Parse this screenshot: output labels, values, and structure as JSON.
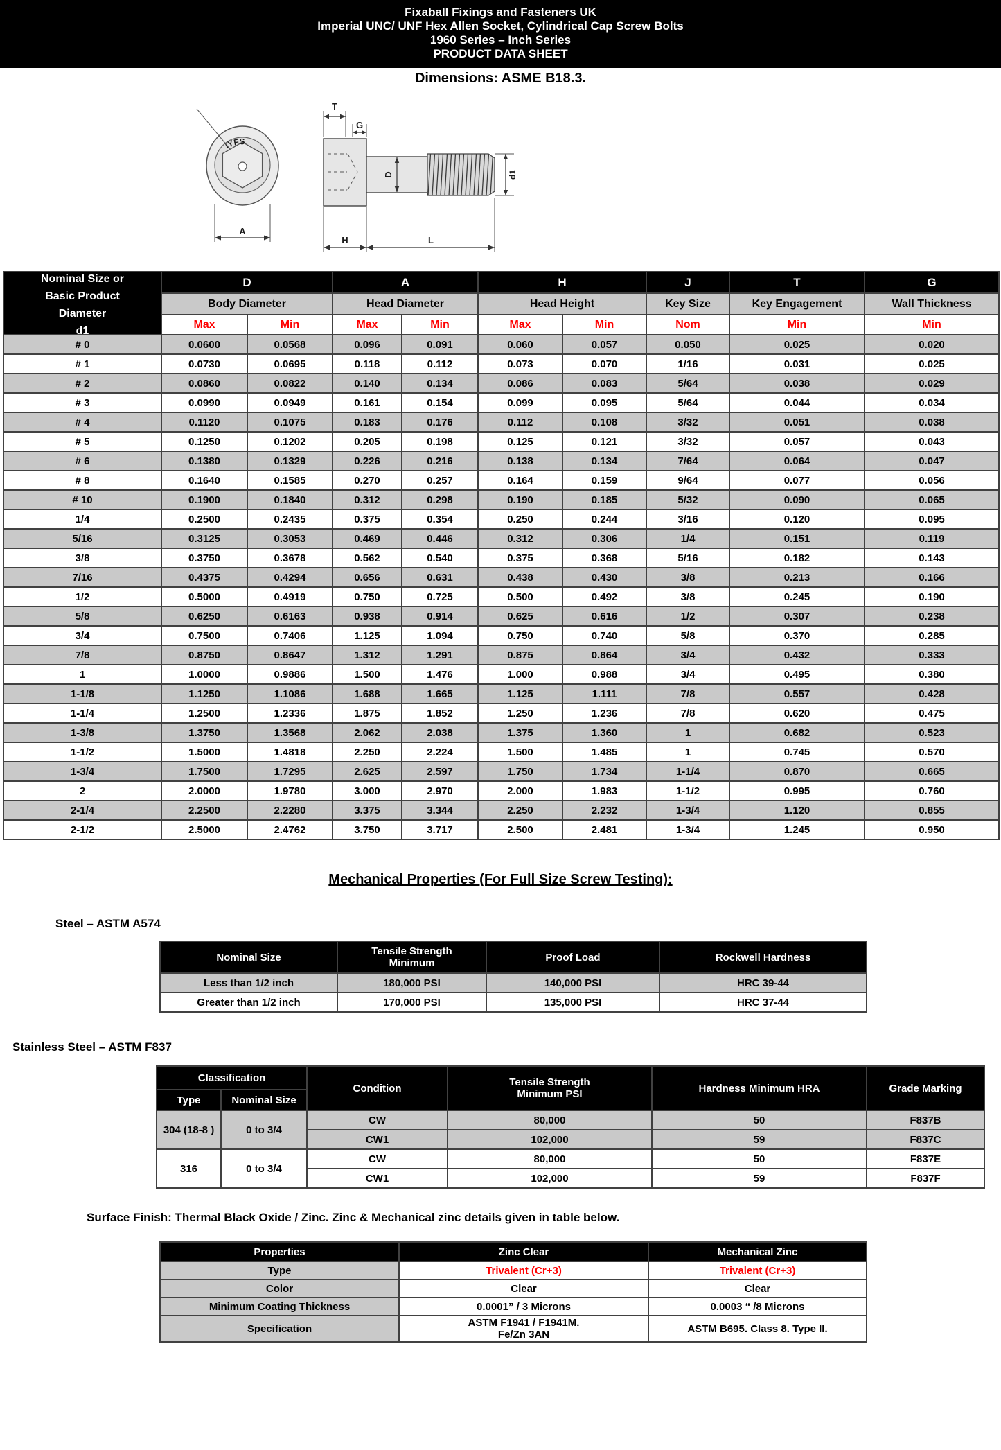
{
  "header": {
    "line1": "Fixaball Fixings and Fasteners UK",
    "line2": "Imperial UNC/ UNF Hex Allen Socket, Cylindrical Cap Screw Bolts",
    "line3": "1960 Series – Inch Series",
    "line4": "PRODUCT DATA SHEET",
    "dimensions_note": "Dimensions: ASME B18.3."
  },
  "diagram": {
    "socket_marking": "IYFS",
    "labels": {
      "t": "T",
      "g": "G",
      "d": "D",
      "d1": "d1",
      "a": "A",
      "h": "H",
      "l": "L"
    }
  },
  "dimension_table": {
    "first_col_header": "Nominal Size or\nBasic Product\nDiameter\nd1",
    "col_groups": [
      {
        "letter": "D",
        "name": "Body Diameter"
      },
      {
        "letter": "A",
        "name": "Head Diameter"
      },
      {
        "letter": "H",
        "name": "Head Height"
      },
      {
        "letter": "J",
        "name": "Key Size"
      },
      {
        "letter": "T",
        "name": "Key Engagement"
      },
      {
        "letter": "G",
        "name": "Wall Thickness"
      }
    ],
    "sub_labels": [
      "Max",
      "Min",
      "Max",
      "Min",
      "Max",
      "Min",
      "Nom",
      "Min",
      "Min"
    ],
    "rows": [
      [
        "# 0",
        "0.0600",
        "0.0568",
        "0.096",
        "0.091",
        "0.060",
        "0.057",
        "0.050",
        "0.025",
        "0.020"
      ],
      [
        "# 1",
        "0.0730",
        "0.0695",
        "0.118",
        "0.112",
        "0.073",
        "0.070",
        "1/16",
        "0.031",
        "0.025"
      ],
      [
        "# 2",
        "0.0860",
        "0.0822",
        "0.140",
        "0.134",
        "0.086",
        "0.083",
        "5/64",
        "0.038",
        "0.029"
      ],
      [
        "# 3",
        "0.0990",
        "0.0949",
        "0.161",
        "0.154",
        "0.099",
        "0.095",
        "5/64",
        "0.044",
        "0.034"
      ],
      [
        "# 4",
        "0.1120",
        "0.1075",
        "0.183",
        "0.176",
        "0.112",
        "0.108",
        "3/32",
        "0.051",
        "0.038"
      ],
      [
        "# 5",
        "0.1250",
        "0.1202",
        "0.205",
        "0.198",
        "0.125",
        "0.121",
        "3/32",
        "0.057",
        "0.043"
      ],
      [
        "# 6",
        "0.1380",
        "0.1329",
        "0.226",
        "0.216",
        "0.138",
        "0.134",
        "7/64",
        "0.064",
        "0.047"
      ],
      [
        "# 8",
        "0.1640",
        "0.1585",
        "0.270",
        "0.257",
        "0.164",
        "0.159",
        "9/64",
        "0.077",
        "0.056"
      ],
      [
        "# 10",
        "0.1900",
        "0.1840",
        "0.312",
        "0.298",
        "0.190",
        "0.185",
        "5/32",
        "0.090",
        "0.065"
      ],
      [
        "1/4",
        "0.2500",
        "0.2435",
        "0.375",
        "0.354",
        "0.250",
        "0.244",
        "3/16",
        "0.120",
        "0.095"
      ],
      [
        "5/16",
        "0.3125",
        "0.3053",
        "0.469",
        "0.446",
        "0.312",
        "0.306",
        "1/4",
        "0.151",
        "0.119"
      ],
      [
        "3/8",
        "0.3750",
        "0.3678",
        "0.562",
        "0.540",
        "0.375",
        "0.368",
        "5/16",
        "0.182",
        "0.143"
      ],
      [
        "7/16",
        "0.4375",
        "0.4294",
        "0.656",
        "0.631",
        "0.438",
        "0.430",
        "3/8",
        "0.213",
        "0.166"
      ],
      [
        "1/2",
        "0.5000",
        "0.4919",
        "0.750",
        "0.725",
        "0.500",
        "0.492",
        "3/8",
        "0.245",
        "0.190"
      ],
      [
        "5/8",
        "0.6250",
        "0.6163",
        "0.938",
        "0.914",
        "0.625",
        "0.616",
        "1/2",
        "0.307",
        "0.238"
      ],
      [
        "3/4",
        "0.7500",
        "0.7406",
        "1.125",
        "1.094",
        "0.750",
        "0.740",
        "5/8",
        "0.370",
        "0.285"
      ],
      [
        "7/8",
        "0.8750",
        "0.8647",
        "1.312",
        "1.291",
        "0.875",
        "0.864",
        "3/4",
        "0.432",
        "0.333"
      ],
      [
        "1",
        "1.0000",
        "0.9886",
        "1.500",
        "1.476",
        "1.000",
        "0.988",
        "3/4",
        "0.495",
        "0.380"
      ],
      [
        "1-1/8",
        "1.1250",
        "1.1086",
        "1.688",
        "1.665",
        "1.125",
        "1.111",
        "7/8",
        "0.557",
        "0.428"
      ],
      [
        "1-1/4",
        "1.2500",
        "1.2336",
        "1.875",
        "1.852",
        "1.250",
        "1.236",
        "7/8",
        "0.620",
        "0.475"
      ],
      [
        "1-3/8",
        "1.3750",
        "1.3568",
        "2.062",
        "2.038",
        "1.375",
        "1.360",
        "1",
        "0.682",
        "0.523"
      ],
      [
        "1-1/2",
        "1.5000",
        "1.4818",
        "2.250",
        "2.224",
        "1.500",
        "1.485",
        "1",
        "0.745",
        "0.570"
      ],
      [
        "1-3/4",
        "1.7500",
        "1.7295",
        "2.625",
        "2.597",
        "1.750",
        "1.734",
        "1-1/4",
        "0.870",
        "0.665"
      ],
      [
        "2",
        "2.0000",
        "1.9780",
        "3.000",
        "2.970",
        "2.000",
        "1.983",
        "1-1/2",
        "0.995",
        "0.760"
      ],
      [
        "2-1/4",
        "2.2500",
        "2.2280",
        "3.375",
        "3.344",
        "2.250",
        "2.232",
        "1-3/4",
        "1.120",
        "0.855"
      ],
      [
        "2-1/2",
        "2.5000",
        "2.4762",
        "3.750",
        "3.717",
        "2.500",
        "2.481",
        "1-3/4",
        "1.245",
        "0.950"
      ]
    ]
  },
  "mechanical": {
    "heading": "Mechanical Properties (For Full Size Screw Testing): ",
    "steel_label": "Steel – ASTM A574",
    "steel_table": {
      "headers": [
        "Nominal Size",
        "Tensile Strength\nMinimum",
        "Proof Load",
        "Rockwell Hardness"
      ],
      "rows": [
        [
          "Less than 1/2 inch",
          "180,000 PSI",
          "140,000 PSI",
          "HRC 39-44"
        ],
        [
          "Greater than 1/2 inch",
          "170,000 PSI",
          "135,000 PSI",
          "HRC 37-44"
        ]
      ]
    },
    "stainless_label": "Stainless Steel – ASTM F837",
    "stainless_table": {
      "classification_header": "Classification",
      "type_header": "Type",
      "nominal_header": "Nominal Size",
      "condition_header": "Condition",
      "tensile_header": "Tensile Strength\nMinimum PSI",
      "hardness_header": "Hardness Minimum HRA",
      "grade_header": "Grade Marking",
      "groups": [
        {
          "type": "304 (18-8 )",
          "nominal_size": "0 to 3/4",
          "rows": [
            [
              "CW",
              "80,000",
              "50",
              "F837B"
            ],
            [
              "CW1",
              "102,000",
              "59",
              "F837C"
            ]
          ]
        },
        {
          "type": "316",
          "nominal_size": "0 to 3/4",
          "rows": [
            [
              "CW",
              "80,000",
              "50",
              "F837E"
            ],
            [
              "CW1",
              "102,000",
              "59",
              "F837F"
            ]
          ]
        }
      ]
    }
  },
  "surface_finish": {
    "note": "Surface Finish: Thermal Black Oxide / Zinc. Zinc & Mechanical zinc details given in table below.",
    "table": {
      "headers": [
        "Properties",
        "Zinc Clear",
        "Mechanical Zinc"
      ],
      "rows": [
        {
          "label": "Type",
          "values": [
            "Trivalent (Cr+3)",
            "Trivalent (Cr+3)"
          ],
          "red": true
        },
        {
          "label": "Color",
          "values": [
            "Clear",
            "Clear"
          ],
          "red": false
        },
        {
          "label": "Minimum Coating Thickness",
          "values": [
            "0.0001” / 3 Microns",
            "0.0003 “ /8 Microns"
          ],
          "red": false
        },
        {
          "label": "Specification",
          "values": [
            "ASTM F1941 / F1941M.\nFe/Zn 3AN",
            "ASTM B695. Class 8. Type II."
          ],
          "red": false
        }
      ]
    }
  },
  "colors": {
    "header_bg": "#000000",
    "row_shade": "#c9c9c9",
    "accent_red": "#fe0000"
  }
}
